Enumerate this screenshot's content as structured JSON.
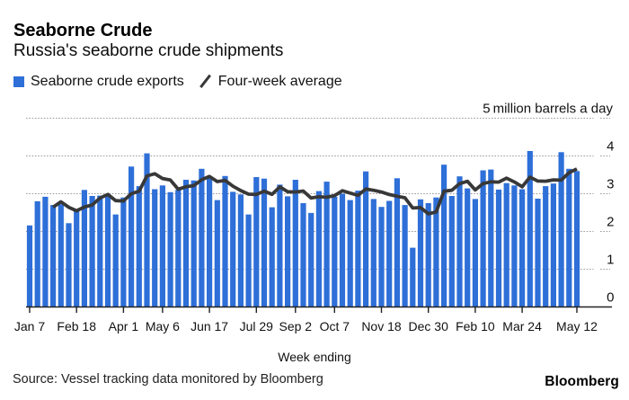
{
  "header": {
    "title": "Seaborne Crude",
    "subtitle": "Russia's seaborne crude shipments"
  },
  "legend": [
    {
      "label": "Seaborne crude exports",
      "swatch": "square",
      "color": "#2e6fd8"
    },
    {
      "label": "Four-week average",
      "swatch": "slash",
      "color": "#383838"
    }
  ],
  "chart_data": {
    "type": "bar",
    "title": "Seaborne Crude",
    "subtitle": "Russia's seaborne crude shipments",
    "xlabel": "Week ending",
    "ylabel": "million barrels a day",
    "unit_top_tick": "5",
    "unit_label": "million barrels a day",
    "ylim": [
      0,
      5
    ],
    "yticks": [
      0,
      1,
      2,
      3,
      4,
      5
    ],
    "grid": "horizontal-dotted",
    "legend_position": "top-left",
    "xtick_labels": [
      "Jan 7",
      "Feb 18",
      "Apr 1",
      "May 6",
      "Jun 17",
      "Jul 29",
      "Sep 2",
      "Oct 7",
      "Nov 18",
      "Dec 30",
      "Feb 10",
      "Mar 24",
      "May 12"
    ],
    "xtick_week_indices": [
      0,
      6,
      12,
      17,
      23,
      29,
      34,
      39,
      45,
      51,
      57,
      63,
      70
    ],
    "x": [
      "2022-01-07",
      "2022-01-14",
      "2022-01-21",
      "2022-01-28",
      "2022-02-04",
      "2022-02-11",
      "2022-02-18",
      "2022-02-25",
      "2022-03-04",
      "2022-03-11",
      "2022-03-18",
      "2022-03-25",
      "2022-04-01",
      "2022-04-08",
      "2022-04-15",
      "2022-04-22",
      "2022-04-29",
      "2022-05-06",
      "2022-05-13",
      "2022-05-20",
      "2022-05-27",
      "2022-06-03",
      "2022-06-10",
      "2022-06-17",
      "2022-06-24",
      "2022-07-01",
      "2022-07-08",
      "2022-07-15",
      "2022-07-22",
      "2022-07-29",
      "2022-08-05",
      "2022-08-12",
      "2022-08-19",
      "2022-08-26",
      "2022-09-02",
      "2022-09-09",
      "2022-09-16",
      "2022-09-23",
      "2022-09-30",
      "2022-10-07",
      "2022-10-14",
      "2022-10-21",
      "2022-10-28",
      "2022-11-04",
      "2022-11-11",
      "2022-11-18",
      "2022-11-25",
      "2022-12-02",
      "2022-12-09",
      "2022-12-16",
      "2022-12-23",
      "2022-12-30",
      "2023-01-06",
      "2023-01-13",
      "2023-01-20",
      "2023-01-27",
      "2023-02-03",
      "2023-02-10",
      "2023-02-17",
      "2023-02-24",
      "2023-03-03",
      "2023-03-10",
      "2023-03-17",
      "2023-03-24",
      "2023-03-31",
      "2023-04-07",
      "2023-04-14",
      "2023-04-21",
      "2023-04-28",
      "2023-05-05",
      "2023-05-12"
    ],
    "series": [
      {
        "name": "Seaborne crude exports",
        "type": "bar",
        "color": "#2e6fd8",
        "values": [
          2.16,
          2.8,
          2.92,
          2.7,
          2.72,
          2.22,
          2.55,
          3.1,
          2.94,
          2.95,
          2.93,
          2.45,
          2.9,
          3.72,
          3.2,
          4.07,
          3.12,
          3.22,
          3.04,
          3.1,
          3.37,
          3.35,
          3.66,
          3.45,
          2.83,
          3.47,
          3.05,
          2.98,
          2.45,
          3.44,
          3.4,
          2.64,
          3.24,
          2.93,
          3.37,
          2.75,
          2.49,
          3.07,
          3.32,
          2.92,
          3.0,
          2.83,
          3.08,
          3.59,
          2.86,
          2.65,
          2.81,
          3.41,
          2.7,
          1.57,
          2.85,
          2.75,
          2.9,
          3.77,
          2.94,
          3.46,
          3.14,
          2.86,
          3.62,
          3.64,
          3.11,
          3.28,
          3.22,
          3.12,
          4.13,
          2.87,
          3.2,
          3.27,
          4.1,
          3.66,
          3.6
        ]
      },
      {
        "name": "Four-week average",
        "type": "line",
        "color": "#383838",
        "derived": "trailing 4-week mean of Seaborne crude exports"
      }
    ]
  },
  "footer": {
    "source": "Source: Vessel tracking data monitored by Bloomberg",
    "logo": "Bloomberg"
  }
}
